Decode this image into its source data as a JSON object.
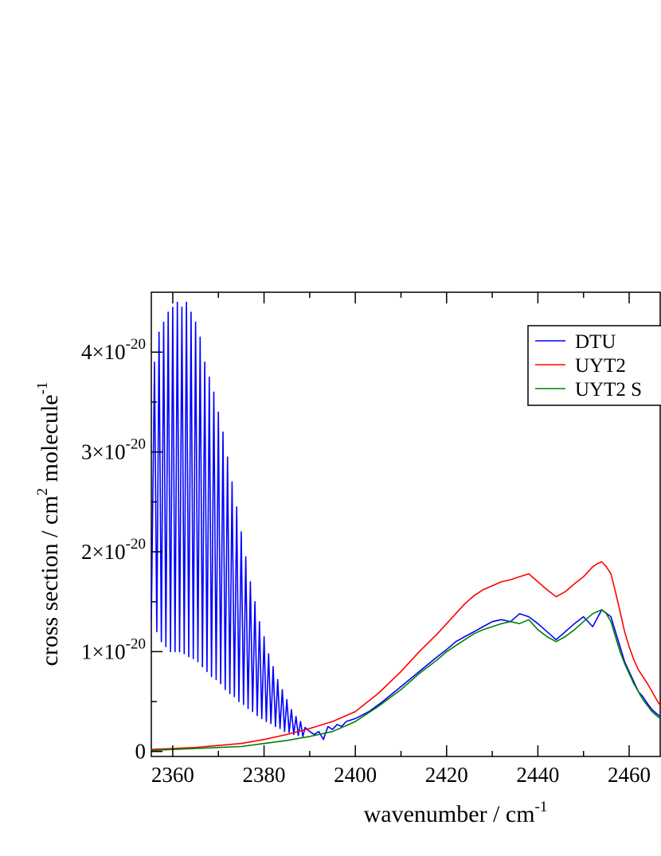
{
  "chart_data": {
    "type": "line",
    "title": "",
    "xlabel": "wavenumber / cm",
    "xlabel_sup": "-1",
    "ylabel": "cross section / cm",
    "ylabel_sup": "2",
    "ylabel_tail": " molecule",
    "ylabel_tail_sup": "-1",
    "xlim": [
      2355.3,
      2466.8
    ],
    "ylim": [
      -5e-22,
      4.6e-20
    ],
    "grid": false,
    "legend": "top-right",
    "x_ticks": [
      {
        "value": 2360,
        "label": "2360"
      },
      {
        "value": 2380,
        "label": "2380"
      },
      {
        "value": 2400,
        "label": "2400"
      },
      {
        "value": 2420,
        "label": "2420"
      },
      {
        "value": 2440,
        "label": "2440"
      },
      {
        "value": 2460,
        "label": "2460"
      }
    ],
    "y_ticks": [
      {
        "value": 0,
        "label": "0",
        "exp": ""
      },
      {
        "value": 1e-20,
        "label": "1×10",
        "exp": "-20"
      },
      {
        "value": 2e-20,
        "label": "2×10",
        "exp": "-20"
      },
      {
        "value": 3e-20,
        "label": "3×10",
        "exp": "-20"
      },
      {
        "value": 4e-20,
        "label": "4×10",
        "exp": "-20"
      }
    ],
    "series": [
      {
        "name": "DTU",
        "color": "#0000ff",
        "x": [
          2355.3,
          2356.0,
          2356.5,
          2357.0,
          2357.5,
          2358.0,
          2358.5,
          2359.0,
          2359.5,
          2360.0,
          2360.5,
          2361.0,
          2361.5,
          2362.0,
          2362.5,
          2363.0,
          2363.5,
          2364.0,
          2364.5,
          2365.0,
          2365.5,
          2366.0,
          2366.5,
          2367.0,
          2367.5,
          2368.0,
          2368.5,
          2369.0,
          2369.5,
          2370.0,
          2370.5,
          2371.0,
          2371.5,
          2372.0,
          2372.5,
          2373.0,
          2373.5,
          2374.0,
          2374.5,
          2375.0,
          2375.5,
          2376.0,
          2376.5,
          2377.0,
          2377.5,
          2378.0,
          2378.5,
          2379.0,
          2379.5,
          2380.0,
          2380.5,
          2381.0,
          2381.5,
          2382.0,
          2382.5,
          2383.0,
          2383.5,
          2384.0,
          2384.5,
          2385.0,
          2385.5,
          2386.0,
          2386.5,
          2387.0,
          2387.5,
          2388.0,
          2388.5,
          2389.0,
          2390.0,
          2391.0,
          2392.0,
          2393.0,
          2394.0,
          2395.0,
          2396.0,
          2397.0,
          2398.0,
          2400.0,
          2403.0,
          2406.0,
          2410.0,
          2414.0,
          2418.0,
          2420.0,
          2422.0,
          2424.0,
          2426.0,
          2428.0,
          2430.0,
          2432.0,
          2434.0,
          2436.0,
          2438.0,
          2440.0,
          2442.0,
          2444.0,
          2446.0,
          2448.0,
          2450.0,
          2452.0,
          2454.0,
          2456.0,
          2457.0,
          2458.0,
          2459.0,
          2460.0,
          2461.0,
          2462.0,
          2463.0,
          2464.0,
          2465.0,
          2466.0,
          2466.8
        ],
        "y": [
          1.3e-20,
          3.9e-20,
          1.2e-20,
          4.2e-20,
          1.1e-20,
          4.3e-20,
          1.05e-20,
          4.4e-20,
          1e-20,
          4.45e-20,
          1e-20,
          4.5e-20,
          1e-20,
          4.45e-20,
          9.8e-21,
          4.5e-20,
          9.5e-21,
          4.4e-20,
          9.3e-21,
          4.3e-20,
          9e-21,
          4.15e-20,
          8.5e-21,
          3.9e-20,
          8e-21,
          3.75e-20,
          7.5e-21,
          3.6e-20,
          7.2e-21,
          3.4e-20,
          6.8e-21,
          3.2e-20,
          6.2e-21,
          2.95e-20,
          5.8e-21,
          2.7e-20,
          5.5e-21,
          2.45e-20,
          5e-21,
          2.2e-20,
          4.7e-21,
          1.95e-20,
          4.3e-21,
          1.7e-20,
          4e-21,
          1.5e-20,
          3.6e-21,
          1.3e-20,
          3.3e-21,
          1.15e-20,
          3e-21,
          9.8e-21,
          2.8e-21,
          8.5e-21,
          2.5e-21,
          7.2e-21,
          2.3e-21,
          6.2e-21,
          2e-21,
          5.2e-21,
          1.9e-21,
          4.2e-21,
          1.7e-21,
          3.5e-21,
          1.6e-21,
          3e-21,
          1.5e-21,
          2.4e-21,
          2e-21,
          1.7e-21,
          2e-21,
          1.2e-21,
          2.5e-21,
          2.2e-21,
          2.7e-21,
          2.5e-21,
          3e-21,
          3.3e-21,
          4e-21,
          5e-21,
          6.5e-21,
          8e-21,
          9.5e-21,
          1.02e-20,
          1.1e-20,
          1.15e-20,
          1.2e-20,
          1.25e-20,
          1.3e-20,
          1.32e-20,
          1.3e-20,
          1.38e-20,
          1.35e-20,
          1.28e-20,
          1.2e-20,
          1.12e-20,
          1.2e-20,
          1.28e-20,
          1.35e-20,
          1.25e-20,
          1.42e-20,
          1.35e-20,
          1.2e-20,
          1.05e-20,
          9e-21,
          8e-21,
          7e-21,
          6e-21,
          5.5e-21,
          4.8e-21,
          4.2e-21,
          3.8e-21,
          3.5e-21
        ]
      },
      {
        "name": "UYT2",
        "color": "#ff0000",
        "x": [
          2355.3,
          2360.0,
          2365.0,
          2370.0,
          2375.0,
          2380.0,
          2385.0,
          2390.0,
          2395.0,
          2400.0,
          2405.0,
          2410.0,
          2414.0,
          2418.0,
          2420.0,
          2422.0,
          2424.0,
          2426.0,
          2428.0,
          2430.0,
          2432.0,
          2434.0,
          2436.0,
          2438.0,
          2440.0,
          2442.0,
          2444.0,
          2446.0,
          2448.0,
          2450.0,
          2452.0,
          2453.0,
          2454.0,
          2455.0,
          2456.0,
          2457.0,
          2458.0,
          2459.0,
          2460.0,
          2461.0,
          2462.0,
          2463.0,
          2464.0,
          2465.0,
          2466.0,
          2466.8
        ],
        "y": [
          2e-22,
          3e-22,
          4e-22,
          6e-22,
          8e-22,
          1.2e-21,
          1.7e-21,
          2.3e-21,
          3e-21,
          4e-21,
          5.8e-21,
          8e-21,
          1e-20,
          1.18e-20,
          1.28e-20,
          1.38e-20,
          1.48e-20,
          1.56e-20,
          1.62e-20,
          1.66e-20,
          1.7e-20,
          1.72e-20,
          1.75e-20,
          1.78e-20,
          1.7e-20,
          1.62e-20,
          1.55e-20,
          1.6e-20,
          1.68e-20,
          1.75e-20,
          1.85e-20,
          1.88e-20,
          1.9e-20,
          1.85e-20,
          1.78e-20,
          1.6e-20,
          1.4e-20,
          1.2e-20,
          1.05e-20,
          9.2e-21,
          8.2e-21,
          7.5e-21,
          6.8e-21,
          6e-21,
          5.2e-21,
          4.6e-21
        ]
      },
      {
        "name": "UYT2 S",
        "color": "#008000",
        "x": [
          2355.3,
          2360.0,
          2365.0,
          2370.0,
          2375.0,
          2380.0,
          2385.0,
          2390.0,
          2395.0,
          2400.0,
          2405.0,
          2410.0,
          2414.0,
          2418.0,
          2420.0,
          2422.0,
          2424.0,
          2426.0,
          2428.0,
          2430.0,
          2432.0,
          2434.0,
          2436.0,
          2438.0,
          2440.0,
          2442.0,
          2444.0,
          2446.0,
          2448.0,
          2450.0,
          2452.0,
          2453.0,
          2454.0,
          2455.0,
          2456.0,
          2457.0,
          2458.0,
          2459.0,
          2460.0,
          2461.0,
          2462.0,
          2463.0,
          2464.0,
          2465.0,
          2466.0,
          2466.8
        ],
        "y": [
          1e-22,
          2e-22,
          3e-22,
          4e-22,
          5e-22,
          8e-22,
          1.1e-21,
          1.5e-21,
          2e-21,
          3e-21,
          4.5e-21,
          6.2e-21,
          7.8e-21,
          9.2e-21,
          1e-20,
          1.06e-20,
          1.12e-20,
          1.18e-20,
          1.22e-20,
          1.25e-20,
          1.28e-20,
          1.3e-20,
          1.28e-20,
          1.32e-20,
          1.22e-20,
          1.15e-20,
          1.1e-20,
          1.15e-20,
          1.22e-20,
          1.3e-20,
          1.38e-20,
          1.4e-20,
          1.42e-20,
          1.38e-20,
          1.3e-20,
          1.15e-20,
          1e-20,
          8.8e-21,
          7.8e-21,
          6.8e-21,
          6e-21,
          5.2e-21,
          4.6e-21,
          4e-21,
          3.6e-21,
          3.3e-21
        ]
      }
    ]
  }
}
